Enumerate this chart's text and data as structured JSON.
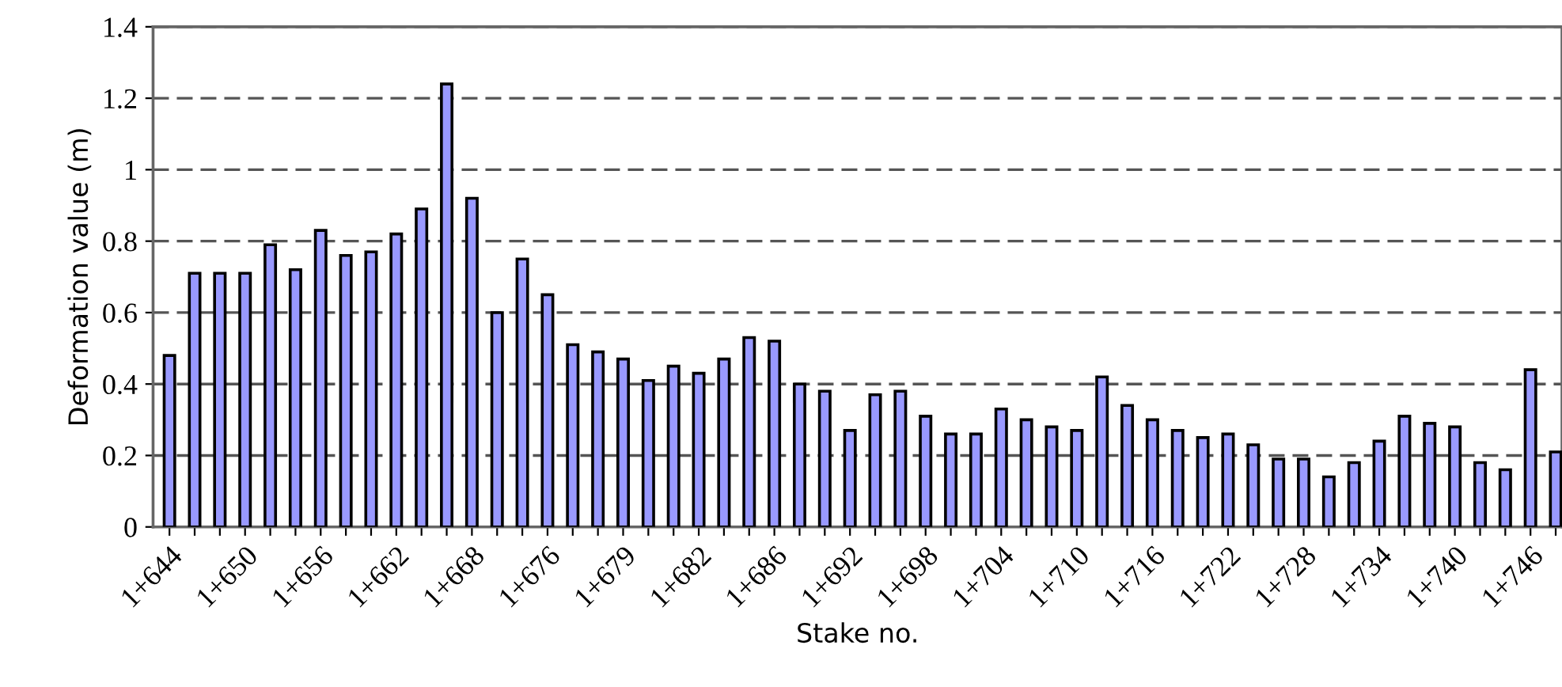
{
  "chart_data": {
    "type": "bar",
    "xlabel": "Stake no.",
    "ylabel": "Deformation value (m)",
    "categories": [
      "1+644",
      null,
      null,
      "1+650",
      null,
      null,
      "1+656",
      null,
      null,
      "1+662",
      null,
      null,
      "1+668",
      null,
      null,
      "1+676",
      null,
      null,
      "1+679",
      null,
      null,
      "1+682",
      null,
      null,
      "1+686",
      null,
      null,
      "1+692",
      null,
      null,
      "1+698",
      null,
      null,
      "1+704",
      null,
      null,
      "1+710",
      null,
      null,
      "1+716",
      null,
      null,
      "1+722",
      null,
      null,
      "1+728",
      null,
      null,
      "1+734",
      null,
      null,
      "1+740",
      null,
      null,
      "1+746",
      null
    ],
    "values": [
      0.48,
      0.71,
      0.71,
      0.71,
      0.79,
      0.72,
      0.83,
      0.76,
      0.77,
      0.82,
      0.89,
      1.24,
      0.92,
      0.6,
      0.75,
      0.65,
      0.51,
      0.49,
      0.47,
      0.41,
      0.45,
      0.43,
      0.47,
      0.53,
      0.52,
      0.4,
      0.38,
      0.27,
      0.37,
      0.38,
      0.31,
      0.26,
      0.26,
      0.33,
      0.3,
      0.28,
      0.27,
      0.42,
      0.34,
      0.3,
      0.27,
      0.25,
      0.26,
      0.23,
      0.19,
      0.19,
      0.14,
      0.18,
      0.24,
      0.31,
      0.29,
      0.28,
      0.18,
      0.16,
      0.44,
      0.21
    ],
    "color": "#9999ff",
    "ylim": [
      0,
      1.4
    ],
    "yticks": [
      0,
      0.2,
      0.4,
      0.6,
      0.8,
      1,
      1.2,
      1.4
    ],
    "grid": "y",
    "line_style": "dashed"
  }
}
